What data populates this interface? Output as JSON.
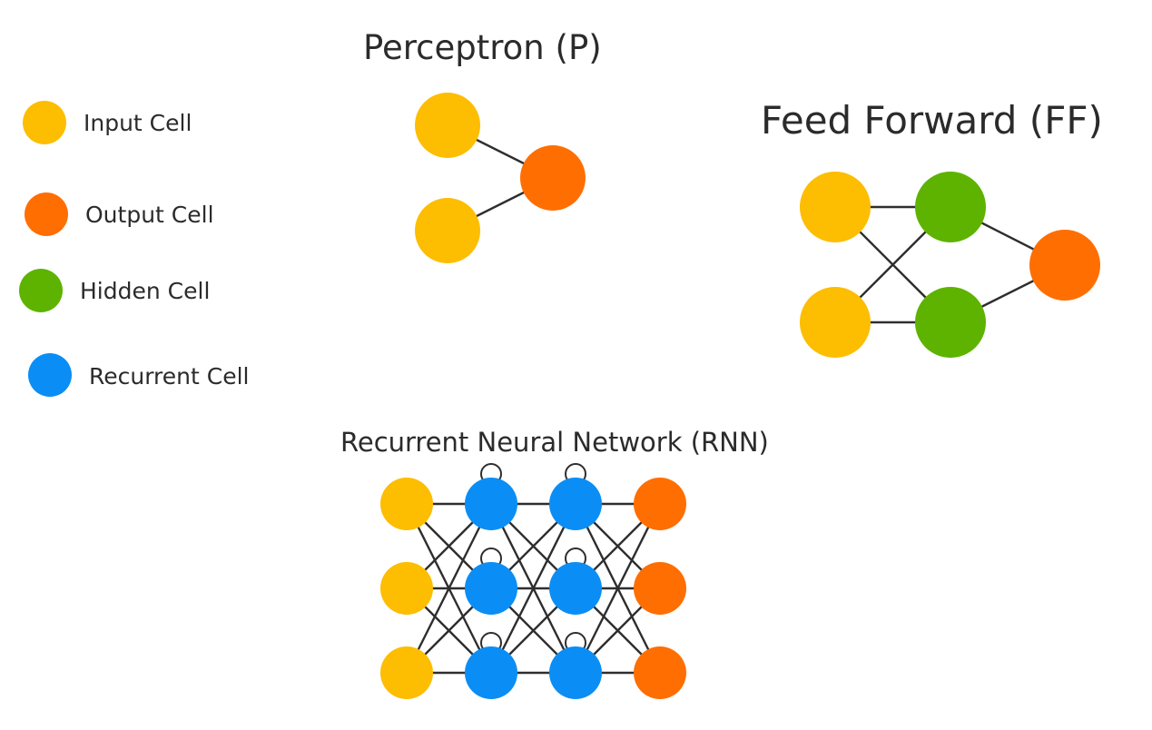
{
  "colors": {
    "input": "#FDBD00",
    "output": "#FF6E00",
    "hidden": "#5DB300",
    "recurrent": "#0A8EF5",
    "edge": "#2e2e2e",
    "text": "#2b2b2b"
  },
  "legend": [
    {
      "label": "Input Cell",
      "kind": "input"
    },
    {
      "label": "Output Cell",
      "kind": "output"
    },
    {
      "label": "Hidden Cell",
      "kind": "hidden"
    },
    {
      "label": "Recurrent Cell",
      "kind": "recurrent"
    }
  ],
  "perceptron": {
    "title": "Perceptron (P)",
    "nodes": [
      "input",
      "input",
      "output"
    ]
  },
  "feed_forward": {
    "title": "Feed Forward (FF)",
    "layers": [
      [
        "input",
        "input"
      ],
      [
        "hidden",
        "hidden"
      ],
      [
        "output"
      ]
    ]
  },
  "rnn": {
    "title": "Recurrent Neural Network (RNN)",
    "layers": [
      [
        "input",
        "input",
        "input"
      ],
      [
        "recurrent",
        "recurrent",
        "recurrent"
      ],
      [
        "recurrent",
        "recurrent",
        "recurrent"
      ],
      [
        "output",
        "output",
        "output"
      ]
    ]
  }
}
